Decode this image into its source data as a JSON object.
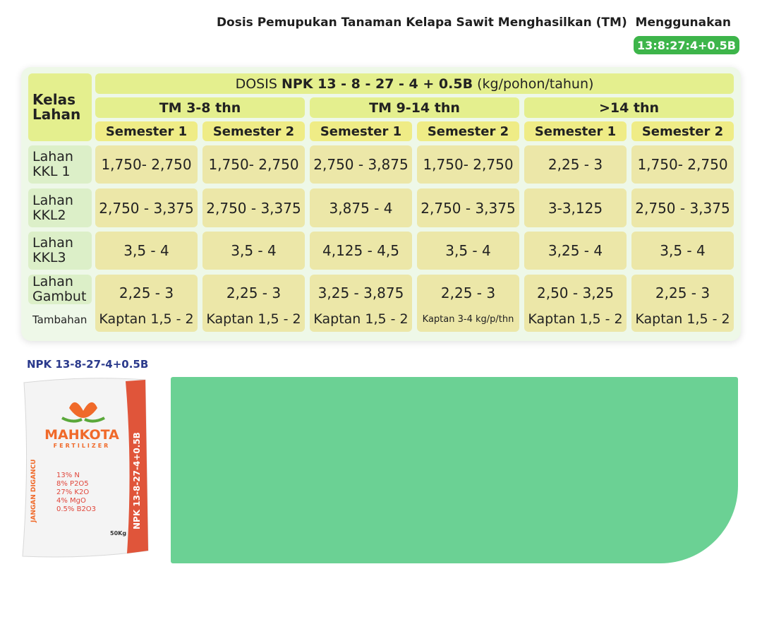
{
  "header": {
    "title": "Dosis Pemupukan Tanaman Kelapa Sawit Menghasilkan (TM)  Menggunakan",
    "badge": "13:8:27:4+0.5B"
  },
  "table": {
    "corner": "Kelas Lahan",
    "dose_title": {
      "prefix": "DOSIS ",
      "bold": "NPK 13 - 8 - 27 - 4 + 0.5B",
      "suffix": " (kg/pohon/tahun)"
    },
    "groups": [
      "TM 3-8 thn",
      "TM 9-14 thn",
      ">14 thn"
    ],
    "semesters": [
      "Semester 1",
      "Semester 2",
      "Semester 1",
      "Semester 2",
      "Semester 1",
      "Semester 2"
    ],
    "rows": [
      {
        "label": "Lahan KKL 1",
        "values": [
          "1,750- 2,750",
          "1,750- 2,750",
          "2,750 - 3,875",
          "1,750- 2,750",
          "2,25 - 3",
          "1,750- 2,750"
        ]
      },
      {
        "label": "Lahan KKL2",
        "values": [
          "2,750 - 3,375",
          "2,750 - 3,375",
          "3,875 - 4",
          "2,750 - 3,375",
          "3-3,125",
          "2,750 - 3,375"
        ]
      },
      {
        "label": "Lahan KKL3",
        "values": [
          "3,5 - 4",
          "3,5 - 4",
          "4,125 - 4,5",
          "3,5 - 4",
          "3,25 - 4",
          "3,5 - 4"
        ]
      },
      {
        "label": "Lahan Gambut",
        "values": [
          "2,25 - 3",
          "2,25 - 3",
          "3,25 - 3,875",
          "2,25 - 3",
          "2,50 - 3,25",
          "2,25 - 3"
        ]
      }
    ],
    "extra": {
      "label": "Tambahan",
      "values": [
        "Kaptan 1,5 - 2",
        "Kaptan 1,5 - 2",
        "Kaptan 1,5 - 2",
        "Kaptan 3-4 kg/p/thn",
        "Kaptan 1,5 - 2",
        "Kaptan 1,5 - 2"
      ]
    }
  },
  "product": {
    "label": "NPK 13-8-27-4+0.5B",
    "brand": "MAHKOTA",
    "sub": "FERTILIZER",
    "nutrients": [
      "13% N",
      "8% P2O5",
      "27% K2O",
      "4% MgO",
      "0.5% B2O3"
    ],
    "weight": "50Kg",
    "side_note": "JANGAN DIGANCU",
    "side_product": "NPK 13-8-27-4+0.5B"
  }
}
